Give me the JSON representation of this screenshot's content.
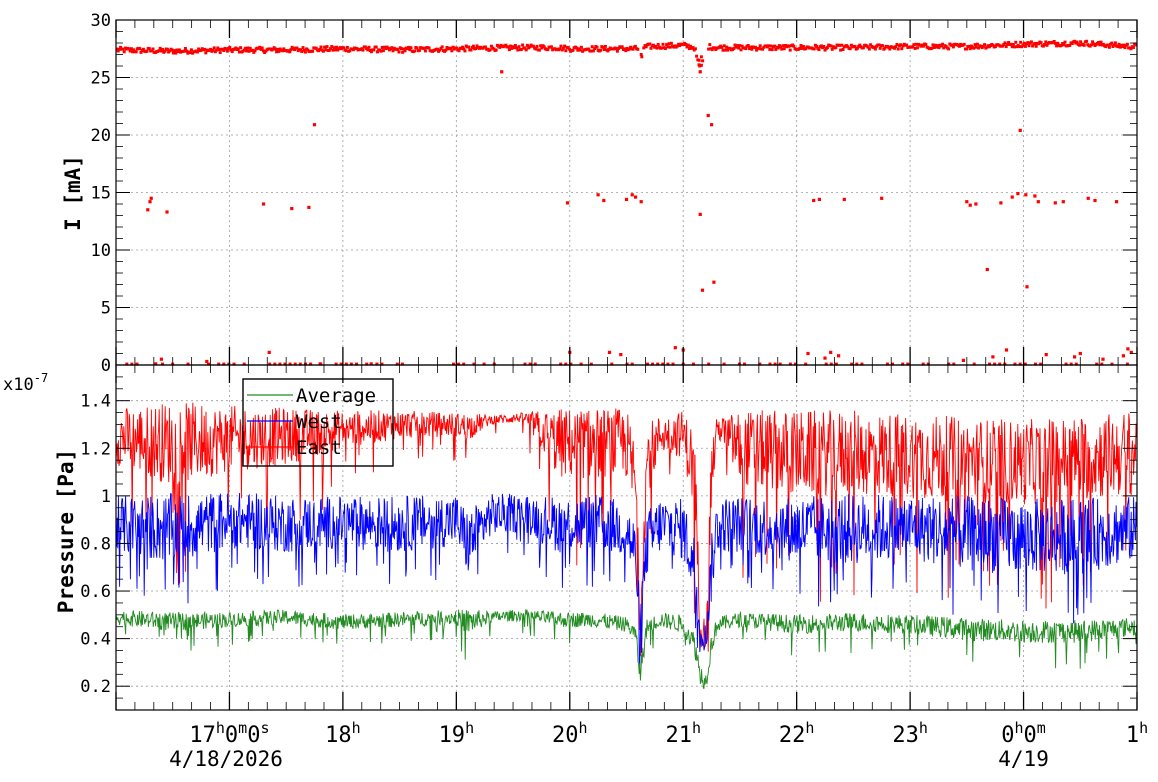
{
  "chart_data": [
    {
      "type": "scatter",
      "ylabel": "I [mA]",
      "ylim": [
        0,
        30
      ],
      "yticks": [
        0,
        5,
        10,
        15,
        20,
        25,
        30
      ],
      "grid": true,
      "series": [
        {
          "color": "#ff0000",
          "marker": "square",
          "baseline_x": [
            16.0,
            16.5,
            17.0,
            17.5,
            18.0,
            18.5,
            19.0,
            19.5,
            19.9,
            20.0,
            20.5,
            20.6,
            20.7,
            21.0,
            21.1,
            21.15,
            21.2,
            21.3,
            21.5,
            22.0,
            22.5,
            23.0,
            23.5,
            24.0,
            24.5,
            24.95
          ],
          "baseline_y": [
            27.4,
            27.3,
            27.4,
            27.4,
            27.5,
            27.4,
            27.5,
            27.6,
            27.6,
            27.5,
            27.5,
            27.5,
            27.7,
            27.8,
            27.6,
            25.5,
            27.7,
            27.6,
            27.6,
            27.6,
            27.6,
            27.7,
            27.7,
            27.9,
            28.0,
            27.7
          ],
          "outliers_x": [
            16.28,
            16.31,
            16.3,
            16.45,
            16.4,
            16.35,
            16.8,
            17.3,
            17.35,
            17.55,
            17.7,
            17.75,
            17.8,
            18.25,
            19.4,
            19.98,
            20.0,
            20.25,
            20.3,
            20.35,
            20.45,
            20.5,
            20.55,
            20.58,
            20.63,
            20.93,
            21.0,
            21.15,
            21.17,
            21.22,
            21.25,
            21.27,
            22.1,
            22.15,
            22.2,
            22.25,
            22.3,
            22.37,
            22.42,
            22.75,
            23.47,
            23.5,
            23.53,
            23.58,
            23.68,
            23.73,
            23.8,
            23.85,
            23.9,
            23.95,
            23.97,
            24.02,
            24.03,
            24.1,
            24.13,
            24.2,
            24.28,
            24.35,
            24.45,
            24.5,
            24.57,
            24.63,
            24.7,
            24.82,
            24.88,
            24.92,
            24.95
          ],
          "outliers_y": [
            13.5,
            14.5,
            14.2,
            13.3,
            0.5,
            0.1,
            0.3,
            14.0,
            1.1,
            13.6,
            13.7,
            20.9,
            0.1,
            0.1,
            25.5,
            14.1,
            1.1,
            14.8,
            14.3,
            1.1,
            0.9,
            14.4,
            14.8,
            14.6,
            14.2,
            1.5,
            1.3,
            13.1,
            6.5,
            21.7,
            20.9,
            7.2,
            1.0,
            14.3,
            14.4,
            0.6,
            1.1,
            0.8,
            14.4,
            14.5,
            0.4,
            14.2,
            13.9,
            14.0,
            8.3,
            0.7,
            14.1,
            1.3,
            14.6,
            14.9,
            20.4,
            14.8,
            6.8,
            14.7,
            14.2,
            0.9,
            14.1,
            14.2,
            0.7,
            1.0,
            14.5,
            14.3,
            0.5,
            14.2,
            0.8,
            1.4,
            1.1
          ]
        }
      ]
    },
    {
      "type": "line",
      "ylabel": "Pressure [Pa]",
      "y_exponent": "x10",
      "y_exponent_power": "-7",
      "ylim": [
        0.1,
        1.55
      ],
      "yticks": [
        0.2,
        0.4,
        0.6,
        0.8,
        1,
        1.2,
        1.4
      ],
      "grid": true,
      "legend_position": "top-left",
      "x_tick_hours": [
        17,
        18,
        19,
        20,
        21,
        22,
        23,
        24,
        25
      ],
      "x_tick_labels": [
        "17h0m0s",
        "18h",
        "19h",
        "20h",
        "21h",
        "22h",
        "23h",
        "0h0m",
        "1h"
      ],
      "date_labels": [
        "4/18/2026",
        "4/19"
      ],
      "xlim_hours": [
        16.0,
        25.0
      ],
      "series": [
        {
          "name": "Average",
          "color": "#228B22",
          "x": [
            16.0,
            16.5,
            17.0,
            17.5,
            18.0,
            18.5,
            19.0,
            19.1,
            19.3,
            19.6,
            19.9,
            20.2,
            20.5,
            20.58,
            20.62,
            20.68,
            20.8,
            21.0,
            21.1,
            21.15,
            21.2,
            21.25,
            21.3,
            21.5,
            22.0,
            22.5,
            23.0,
            23.5,
            24.0,
            24.5,
            24.95
          ],
          "center": [
            0.49,
            0.47,
            0.48,
            0.49,
            0.47,
            0.48,
            0.49,
            0.47,
            0.49,
            0.5,
            0.48,
            0.48,
            0.46,
            0.42,
            0.25,
            0.45,
            0.48,
            0.46,
            0.38,
            0.25,
            0.22,
            0.38,
            0.46,
            0.48,
            0.46,
            0.47,
            0.46,
            0.44,
            0.43,
            0.43,
            0.45
          ],
          "amplitude": [
            0.04,
            0.05,
            0.04,
            0.04,
            0.04,
            0.04,
            0.04,
            0.07,
            0.03,
            0.03,
            0.04,
            0.04,
            0.04,
            0.04,
            0.07,
            0.04,
            0.04,
            0.05,
            0.06,
            0.06,
            0.05,
            0.06,
            0.04,
            0.04,
            0.05,
            0.05,
            0.05,
            0.06,
            0.06,
            0.06,
            0.05
          ]
        },
        {
          "name": "West",
          "color": "#0000ff",
          "x": [
            16.0,
            16.5,
            17.0,
            17.5,
            18.0,
            18.5,
            19.0,
            19.1,
            19.3,
            19.6,
            19.9,
            20.2,
            20.5,
            20.58,
            20.62,
            20.68,
            20.8,
            21.0,
            21.1,
            21.15,
            21.2,
            21.25,
            21.3,
            21.5,
            22.0,
            22.5,
            23.0,
            23.5,
            24.0,
            24.5,
            24.95
          ],
          "center": [
            0.88,
            0.86,
            0.9,
            0.88,
            0.89,
            0.88,
            0.9,
            0.8,
            0.92,
            0.93,
            0.88,
            0.89,
            0.86,
            0.75,
            0.45,
            0.8,
            0.88,
            0.86,
            0.7,
            0.44,
            0.4,
            0.7,
            0.88,
            0.88,
            0.86,
            0.86,
            0.87,
            0.84,
            0.83,
            0.83,
            0.86
          ],
          "amplitude": [
            0.12,
            0.15,
            0.12,
            0.12,
            0.11,
            0.12,
            0.11,
            0.14,
            0.09,
            0.08,
            0.12,
            0.12,
            0.12,
            0.14,
            0.08,
            0.14,
            0.12,
            0.13,
            0.14,
            0.08,
            0.06,
            0.14,
            0.12,
            0.12,
            0.14,
            0.15,
            0.14,
            0.16,
            0.16,
            0.16,
            0.14
          ]
        },
        {
          "name": "East",
          "color": "#ff0000",
          "x": [
            16.0,
            16.5,
            17.0,
            17.5,
            18.0,
            18.5,
            19.0,
            19.1,
            19.3,
            19.6,
            19.9,
            20.2,
            20.5,
            20.58,
            20.62,
            20.68,
            20.8,
            21.0,
            21.1,
            21.15,
            21.2,
            21.25,
            21.3,
            21.5,
            22.0,
            22.5,
            23.0,
            23.5,
            24.0,
            24.5,
            24.95
          ],
          "center": [
            1.25,
            1.22,
            1.24,
            1.25,
            1.28,
            1.3,
            1.3,
            1.29,
            1.32,
            1.33,
            1.22,
            1.22,
            1.22,
            1.05,
            0.48,
            1.15,
            1.26,
            1.26,
            1.1,
            0.45,
            0.42,
            1.1,
            1.29,
            1.2,
            1.18,
            1.18,
            1.17,
            1.15,
            1.14,
            1.16,
            1.18
          ],
          "amplitude": [
            0.12,
            0.18,
            0.14,
            0.12,
            0.08,
            0.06,
            0.05,
            0.06,
            0.02,
            0.02,
            0.15,
            0.15,
            0.15,
            0.18,
            0.08,
            0.16,
            0.08,
            0.1,
            0.18,
            0.08,
            0.06,
            0.18,
            0.04,
            0.16,
            0.18,
            0.18,
            0.18,
            0.18,
            0.18,
            0.18,
            0.18
          ]
        }
      ]
    }
  ]
}
